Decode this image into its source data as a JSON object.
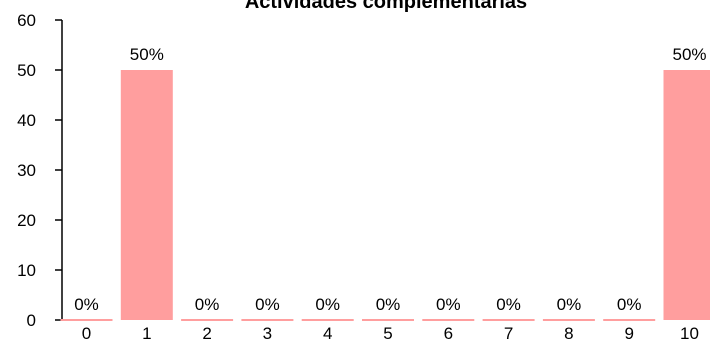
{
  "chart_data": {
    "type": "bar",
    "title": "Actividades complementarias",
    "xlabel": "",
    "ylabel": "",
    "categories": [
      "0",
      "1",
      "2",
      "3",
      "4",
      "5",
      "6",
      "7",
      "8",
      "9",
      "10"
    ],
    "values": [
      0,
      50,
      0,
      0,
      0,
      0,
      0,
      0,
      0,
      0,
      50
    ],
    "data_labels": [
      "0%",
      "50%",
      "0%",
      "0%",
      "0%",
      "0%",
      "0%",
      "0%",
      "0%",
      "0%",
      "50%"
    ],
    "ylim": [
      0,
      60
    ],
    "yticks": [
      "0",
      "10",
      "20",
      "30",
      "40",
      "50",
      "60"
    ],
    "grid": false,
    "bar_color": "#ff9e9e"
  }
}
